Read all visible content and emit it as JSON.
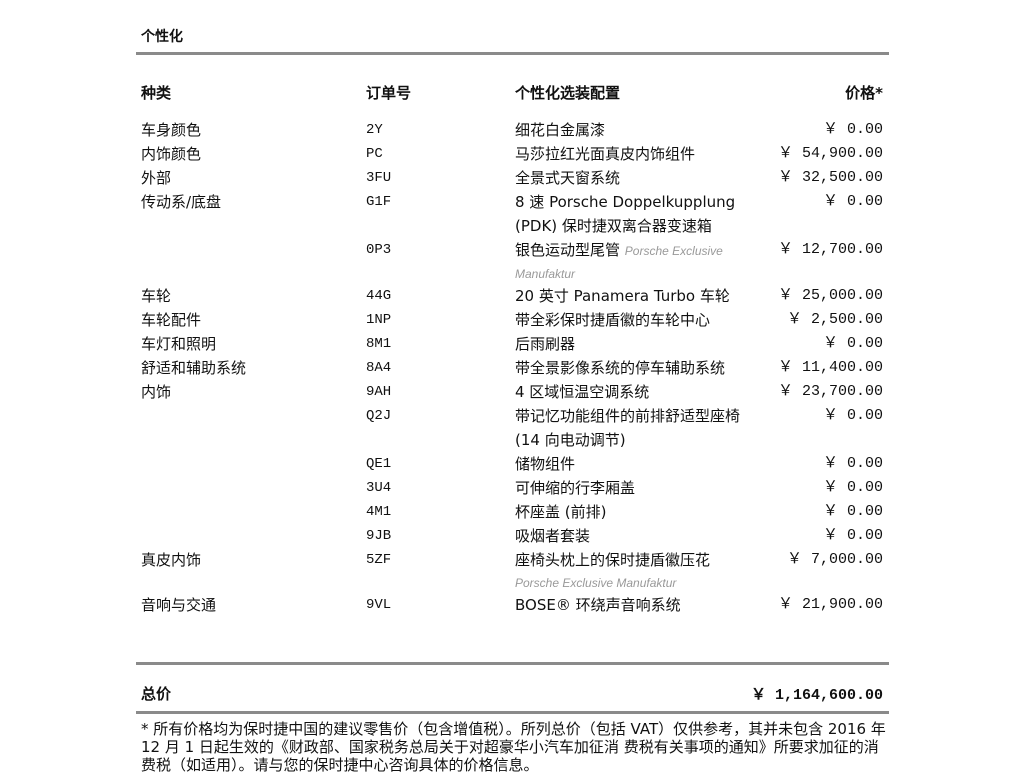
{
  "section_title": "个性化",
  "headers": {
    "category": "种类",
    "code": "订单号",
    "config": "个性化选装配置",
    "price": "价格*"
  },
  "rows": [
    {
      "category": "车身颜色",
      "code": "2Y",
      "config": "细花白金属漆",
      "price": "￥ 0.00"
    },
    {
      "category": "内饰颜色",
      "code": "PC",
      "config": "马莎拉红光面真皮内饰组件",
      "price": "￥ 54,900.00"
    },
    {
      "category": "外部",
      "code": "3FU",
      "config": "全景式天窗系统",
      "price": "￥ 32,500.00"
    },
    {
      "category": "传动系/底盘",
      "code": "G1F",
      "config": "8 速 Porsche Doppelkupplung (PDK) 保时捷双离合器变速箱",
      "price": "￥ 0.00"
    },
    {
      "category": "",
      "code": "0P3",
      "config": "银色运动型尾管",
      "note": "Porsche Exclusive",
      "note2": "Manufaktur",
      "price": "￥ 12,700.00"
    },
    {
      "category": "车轮",
      "code": "44G",
      "config": "20 英寸 Panamera Turbo 车轮",
      "price": "￥ 25,000.00"
    },
    {
      "category": "车轮配件",
      "code": "1NP",
      "config": "带全彩保时捷盾徽的车轮中心",
      "price": "￥ 2,500.00"
    },
    {
      "category": "车灯和照明",
      "code": "8M1",
      "config": "后雨刷器",
      "price": "￥ 0.00"
    },
    {
      "category": "舒适和辅助系统",
      "code": "8A4",
      "config": "带全景影像系统的停车辅助系统",
      "price": "￥ 11,400.00"
    },
    {
      "category": "内饰",
      "code": "9AH",
      "config": "4 区域恒温空调系统",
      "price": "￥ 23,700.00"
    },
    {
      "category": "",
      "code": "Q2J",
      "config": "带记忆功能组件的前排舒适型座椅 (14 向电动调节)",
      "price": "￥ 0.00"
    },
    {
      "category": "",
      "code": "QE1",
      "config": "储物组件",
      "price": "￥ 0.00"
    },
    {
      "category": "",
      "code": "3U4",
      "config": "可伸缩的行李厢盖",
      "price": "￥ 0.00"
    },
    {
      "category": "",
      "code": "4M1",
      "config": "杯座盖 (前排)",
      "price": "￥ 0.00"
    },
    {
      "category": "",
      "code": "9JB",
      "config": "吸烟者套装",
      "price": "￥ 0.00"
    },
    {
      "category": "真皮内饰",
      "code": "5ZF",
      "config": "座椅头枕上的保时捷盾徽压花",
      "note2": "Porsche Exclusive Manufaktur",
      "price": "￥ 7,000.00"
    },
    {
      "category": "音响与交通",
      "code": "9VL",
      "config": "BOSE® 环绕声音响系统",
      "price": "￥ 21,900.00"
    }
  ],
  "total": {
    "label": "总价",
    "value": "￥ 1,164,600.00"
  },
  "footnote": "* 所有价格均为保时捷中国的建议零售价（包含增值税）。所列总价（包括 VAT）仅供参考，其并未包含 2016 年 12 月 1 日起生效的《财政部、国家税务总局关于对超豪华小汽车加征消 费税有关事项的通知》所要求加征的消费税（如适用）。请与您的保时捷中心咨询具体的价格信息。"
}
